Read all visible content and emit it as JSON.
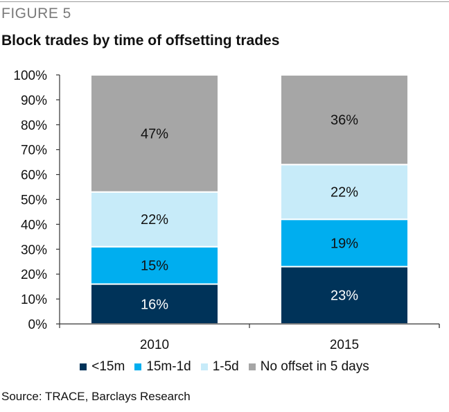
{
  "figure_label": "FIGURE 5",
  "title": "Block trades by time of offsetting trades",
  "source": "Source: TRACE, Barclays Research",
  "colors": {
    "lt15m": "#003359",
    "15m_1d": "#00aeef",
    "1_5d": "#c7ebf9",
    "no_offset": "#a6a6a6"
  },
  "chart_data": {
    "type": "bar",
    "stacked": true,
    "categories": [
      "2010",
      "2015"
    ],
    "series": [
      {
        "name": "<15m",
        "values": [
          16,
          23
        ],
        "color": "#003359",
        "label_color": "#ffffff"
      },
      {
        "name": "15m-1d",
        "values": [
          15,
          19
        ],
        "color": "#00aeef",
        "label_color": "#111111"
      },
      {
        "name": "1-5d",
        "values": [
          22,
          22
        ],
        "color": "#c7ebf9",
        "label_color": "#111111"
      },
      {
        "name": "No offset in 5 days",
        "values": [
          47,
          36
        ],
        "color": "#a6a6a6",
        "label_color": "#111111"
      }
    ],
    "value_suffix": "%",
    "ylim": [
      0,
      100
    ],
    "yticks": [
      "0%",
      "10%",
      "20%",
      "30%",
      "40%",
      "50%",
      "60%",
      "70%",
      "80%",
      "90%",
      "100%"
    ],
    "legend_position": "bottom",
    "grid": false
  }
}
